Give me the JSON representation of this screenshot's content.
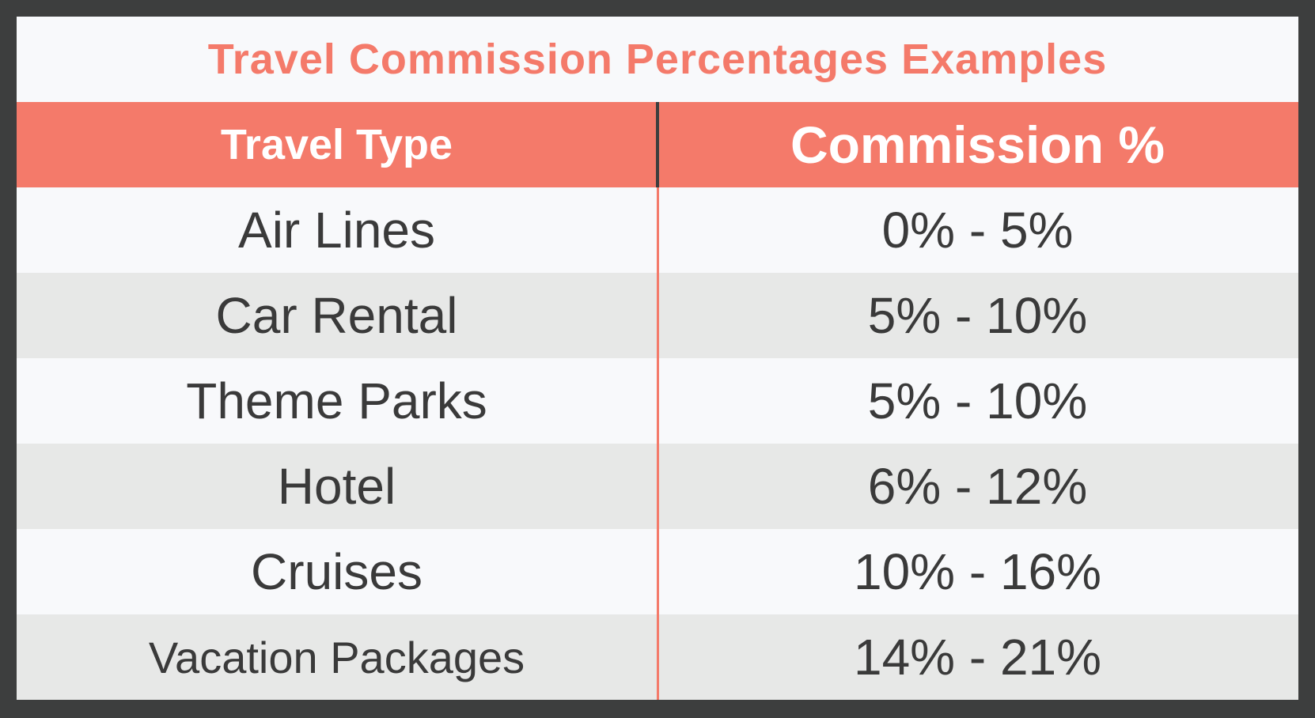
{
  "title": "Travel Commission Percentages Examples",
  "colors": {
    "accent": "#f47a6a",
    "frame": "#3d3e3e",
    "row_light": "#f8f9fb",
    "row_dark": "#e7e8e7",
    "text": "#3a3a3a"
  },
  "headers": {
    "type": "Travel Type",
    "commission": "Commission %"
  },
  "rows": [
    {
      "type": "Air Lines",
      "commission": "0% - 5%"
    },
    {
      "type": "Car Rental",
      "commission": "5% - 10%"
    },
    {
      "type": "Theme Parks",
      "commission": "5% - 10%"
    },
    {
      "type": "Hotel",
      "commission": "6% - 12%"
    },
    {
      "type": "Cruises",
      "commission": "10% - 16%"
    },
    {
      "type": "Vacation Packages",
      "commission": "14% - 21%"
    }
  ]
}
